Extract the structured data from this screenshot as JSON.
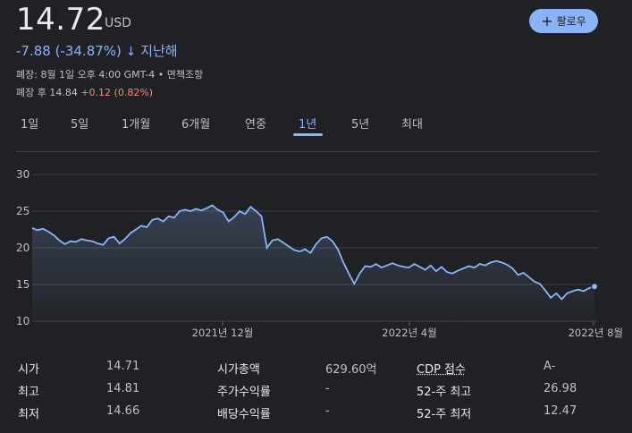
{
  "quote": {
    "price": "14.72",
    "currency": "USD",
    "change": "-7.88 (-34.87%)",
    "change_arrow": "↓",
    "change_period": "지난해",
    "close_info": "폐장: 8월 1일 오후 4:00 GMT-4 • 면책조항",
    "after_hours_label": "폐장 후 14.84",
    "after_hours_change": "+0.12 (0.82%)"
  },
  "follow_button": {
    "label": "팔로우",
    "icon": "plus-icon"
  },
  "tabs": [
    {
      "label": "1일"
    },
    {
      "label": "5일"
    },
    {
      "label": "1개월"
    },
    {
      "label": "6개월"
    },
    {
      "label": "연중"
    },
    {
      "label": "1년"
    },
    {
      "label": "5년"
    },
    {
      "label": "최대"
    }
  ],
  "active_tab": "1년",
  "chart_data": {
    "type": "area",
    "ylim": [
      10,
      30
    ],
    "yticks": [
      10,
      15,
      20,
      25,
      30
    ],
    "xtick_labels": [
      "2021년 12월",
      "2022년 4월",
      "2022년 8월"
    ],
    "series": [
      {
        "values": [
          22.7,
          22.4,
          22.6,
          22.2,
          21.7,
          21.0,
          20.5,
          20.9,
          20.8,
          21.2,
          21.0,
          20.9,
          20.6,
          20.4,
          21.3,
          21.5,
          20.6,
          21.2,
          22.0,
          22.5,
          23.0,
          22.8,
          23.8,
          24.0,
          23.6,
          24.3,
          24.1,
          25.0,
          25.2,
          25.0,
          25.3,
          25.1,
          25.4,
          25.8,
          25.2,
          24.8,
          23.6,
          24.2,
          25.0,
          24.6,
          25.6,
          25.0,
          24.3,
          20.0,
          21.0,
          21.2,
          20.7,
          20.2,
          19.7,
          19.5,
          19.8,
          19.3,
          20.5,
          21.3,
          21.5,
          20.9,
          19.8,
          18.0,
          16.5,
          15.1,
          16.5,
          17.5,
          17.4,
          17.8,
          17.3,
          17.6,
          17.9,
          17.6,
          17.4,
          17.3,
          17.8,
          17.4,
          17.0,
          17.6,
          16.8,
          17.4,
          16.7,
          16.5,
          16.9,
          17.2,
          17.5,
          17.3,
          17.8,
          17.6,
          18.0,
          18.2,
          18.0,
          17.7,
          17.2,
          16.3,
          16.6,
          16.0,
          15.4,
          15.1,
          14.2,
          13.2,
          13.8,
          13.0,
          13.8,
          14.1,
          14.3,
          14.1,
          14.5,
          14.72
        ],
        "color": "#8ab4f8"
      }
    ]
  },
  "stats": [
    {
      "label": "시가",
      "value": "14.71"
    },
    {
      "label": "최고",
      "value": "14.81"
    },
    {
      "label": "최저",
      "value": "14.66"
    },
    {
      "label": "시가총액",
      "value": "629.60억"
    },
    {
      "label": "주가수익률",
      "value": "-"
    },
    {
      "label": "배당수익률",
      "value": "-"
    },
    {
      "label": "CDP 점수",
      "value": "A-"
    },
    {
      "label": "52-주 최고",
      "value": "26.98"
    },
    {
      "label": "52-주 최저",
      "value": "12.47"
    }
  ]
}
